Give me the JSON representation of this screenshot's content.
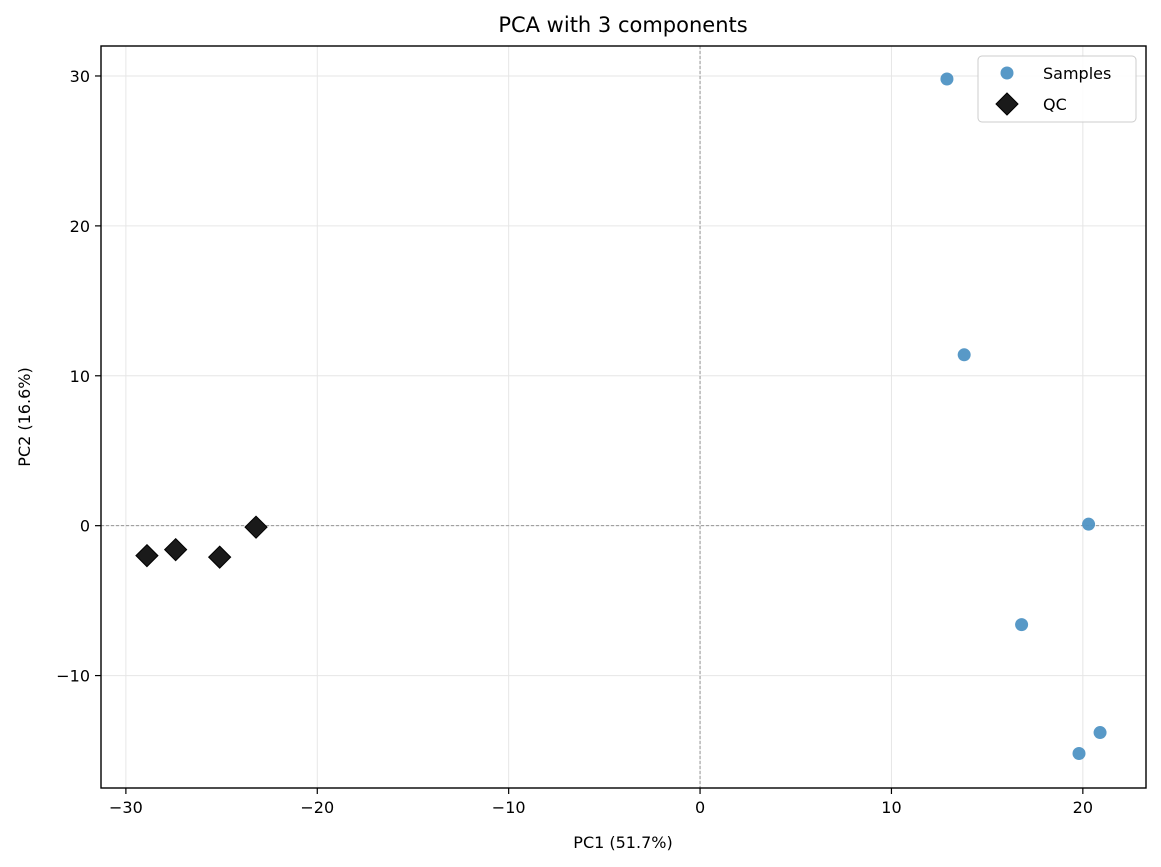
{
  "chart_data": {
    "type": "scatter",
    "title": "PCA with 3 components",
    "xlabel": "PC1 (51.7%)",
    "ylabel": "PC2 (16.6%)",
    "xlim": [
      -31.3,
      23.3
    ],
    "ylim": [
      -17.5,
      32.0
    ],
    "xticks": [
      -30,
      -20,
      -10,
      0,
      10,
      20
    ],
    "yticks": [
      -10,
      0,
      10,
      20,
      30
    ],
    "xtick_labels": [
      "−30",
      "−20",
      "−10",
      "0",
      "10",
      "20"
    ],
    "ytick_labels": [
      "−10",
      "0",
      "10",
      "20",
      "30"
    ],
    "grid": true,
    "zero_lines": true,
    "legend_position": "upper right",
    "series": [
      {
        "name": "Samples",
        "marker": "circle",
        "color": "#4f93c4",
        "points": [
          {
            "x": 12.9,
            "y": 29.8
          },
          {
            "x": 13.8,
            "y": 11.4
          },
          {
            "x": 20.3,
            "y": 0.1
          },
          {
            "x": 16.8,
            "y": -6.6
          },
          {
            "x": 20.9,
            "y": -13.8
          },
          {
            "x": 19.8,
            "y": -15.2
          }
        ]
      },
      {
        "name": "QC",
        "marker": "diamond",
        "color": "#1a1a1a",
        "points": [
          {
            "x": -28.9,
            "y": -2.0
          },
          {
            "x": -27.4,
            "y": -1.6
          },
          {
            "x": -25.1,
            "y": -2.1
          },
          {
            "x": -23.2,
            "y": -0.1
          }
        ]
      }
    ]
  }
}
